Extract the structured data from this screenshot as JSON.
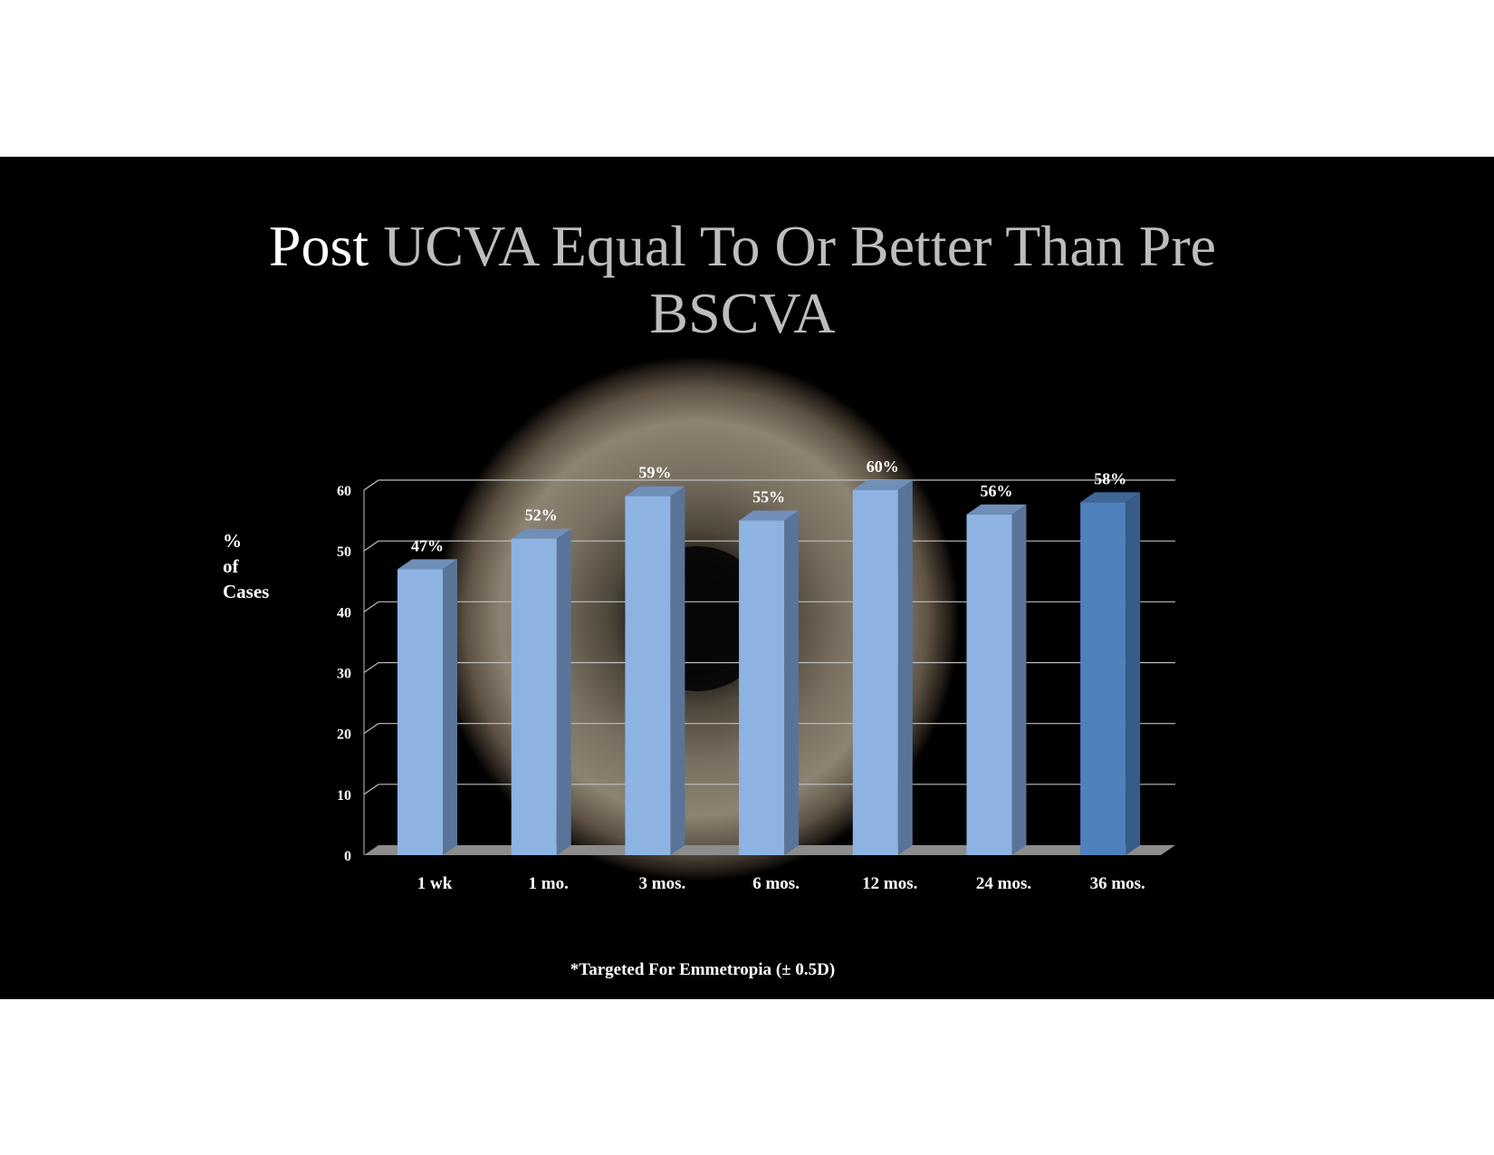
{
  "title": {
    "word1": "Post",
    "rest": " UCVA Equal To Or Better Than  Pre BSCVA"
  },
  "footnote": "*Targeted For Emmetropia (± 0.5D)",
  "colors": {
    "bar": "#8db3e2",
    "bar_highlight": "#4f81bd",
    "background": "#000000"
  },
  "chart_data": {
    "type": "bar",
    "title": "Post UCVA Equal To Or Better Than  Pre BSCVA",
    "ylabel_lines": [
      "%",
      "of",
      "Cases"
    ],
    "xlabel": "",
    "categories": [
      "1 wk",
      "1 mo.",
      "3 mos.",
      "6 mos.",
      "12 mos.",
      "24 mos.",
      "36 mos."
    ],
    "values": [
      47,
      52,
      59,
      55,
      60,
      56,
      58
    ],
    "data_labels": [
      "47%",
      "52%",
      "59%",
      "55%",
      "60%",
      "56%",
      "58%"
    ],
    "yticks": [
      "0",
      "10",
      "20",
      "30",
      "40",
      "50",
      "60"
    ],
    "ylim": [
      0,
      60
    ],
    "grid": true,
    "highlight_index": 6
  }
}
